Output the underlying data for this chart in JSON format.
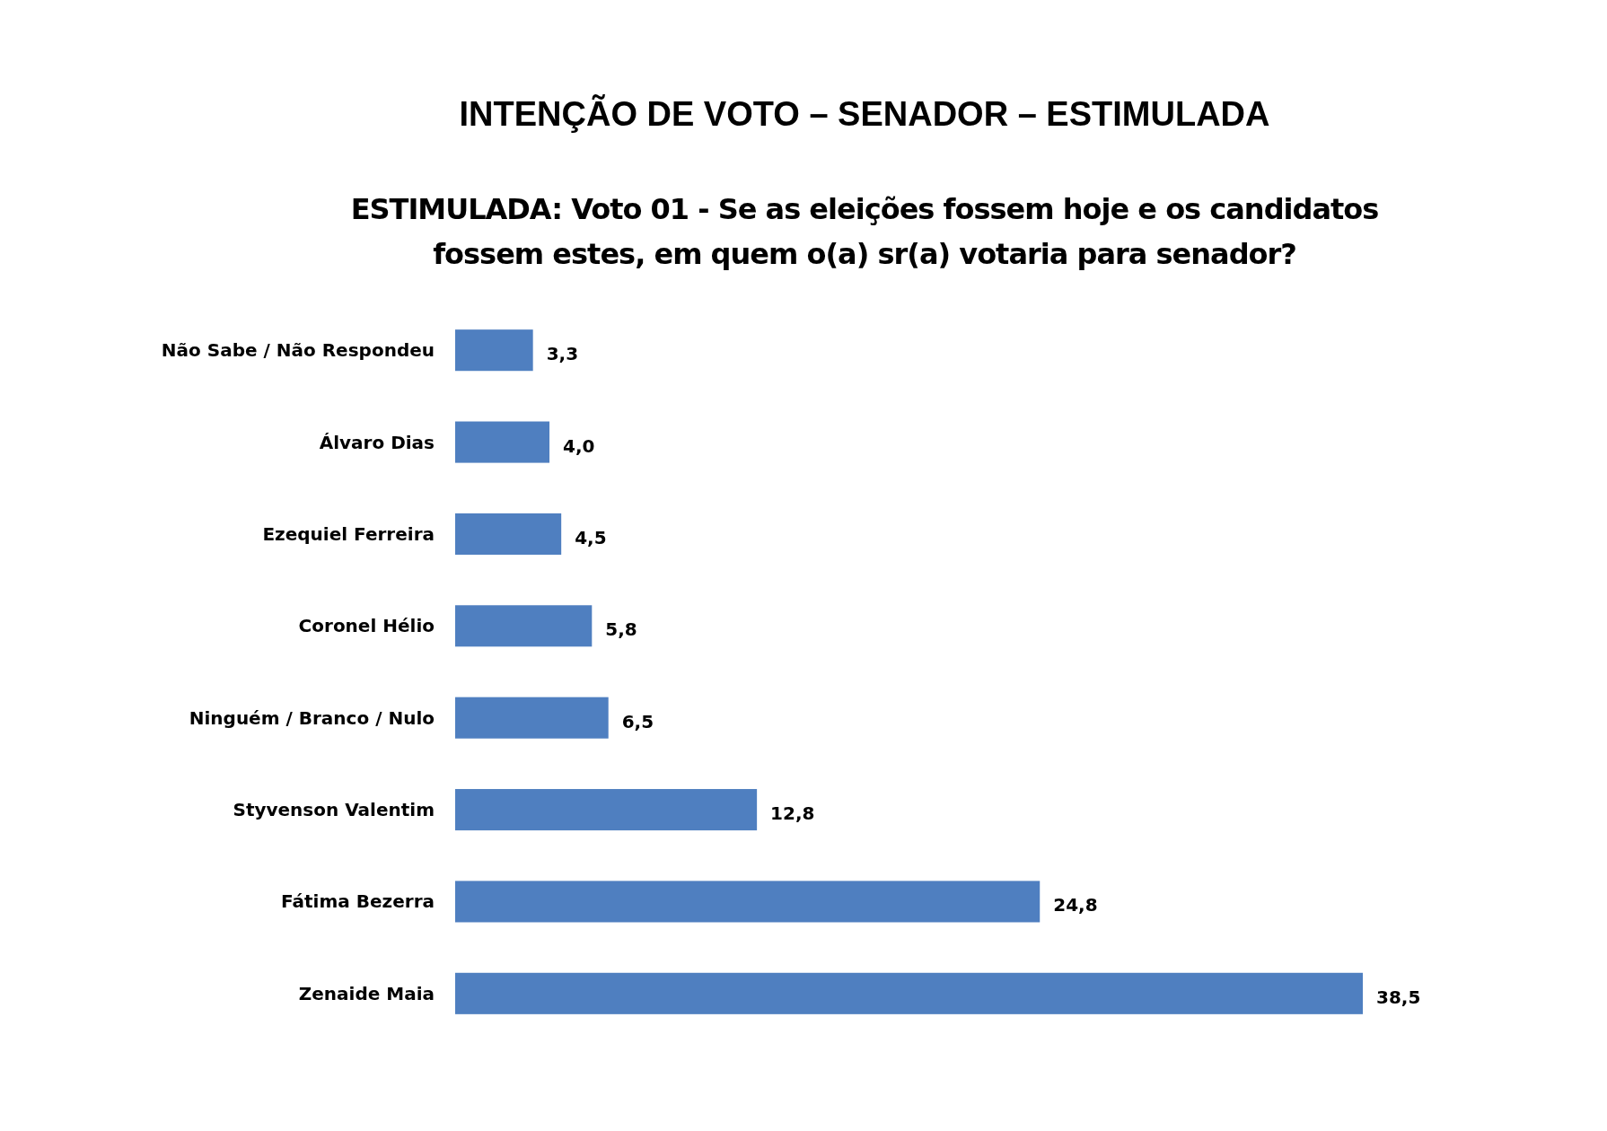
{
  "chart_data": {
    "type": "bar",
    "orientation": "horizontal",
    "title": "INTENÇÃO DE VOTO – SENADOR – ESTIMULADA",
    "subtitle": "ESTIMULADA: Voto 01 - Se as eleições fossem hoje e os candidatos fossem estes, em quem o(a) sr(a) votaria para senador?",
    "categories": [
      "Não Sabe / Não Respondeu",
      "Álvaro Dias",
      "Ezequiel Ferreira",
      "Coronel Hélio",
      "Ninguém / Branco / Nulo",
      "Styvenson Valentim",
      "Fátima Bezerra",
      "Zenaide Maia"
    ],
    "values": [
      3.3,
      4.0,
      4.5,
      5.8,
      6.5,
      12.8,
      24.8,
      38.5
    ],
    "value_labels": [
      "3,3",
      "4,0",
      "4,5",
      "5,8",
      "6,5",
      "12,8",
      "24,8",
      "38,5"
    ],
    "color": "#4f7fc0"
  }
}
